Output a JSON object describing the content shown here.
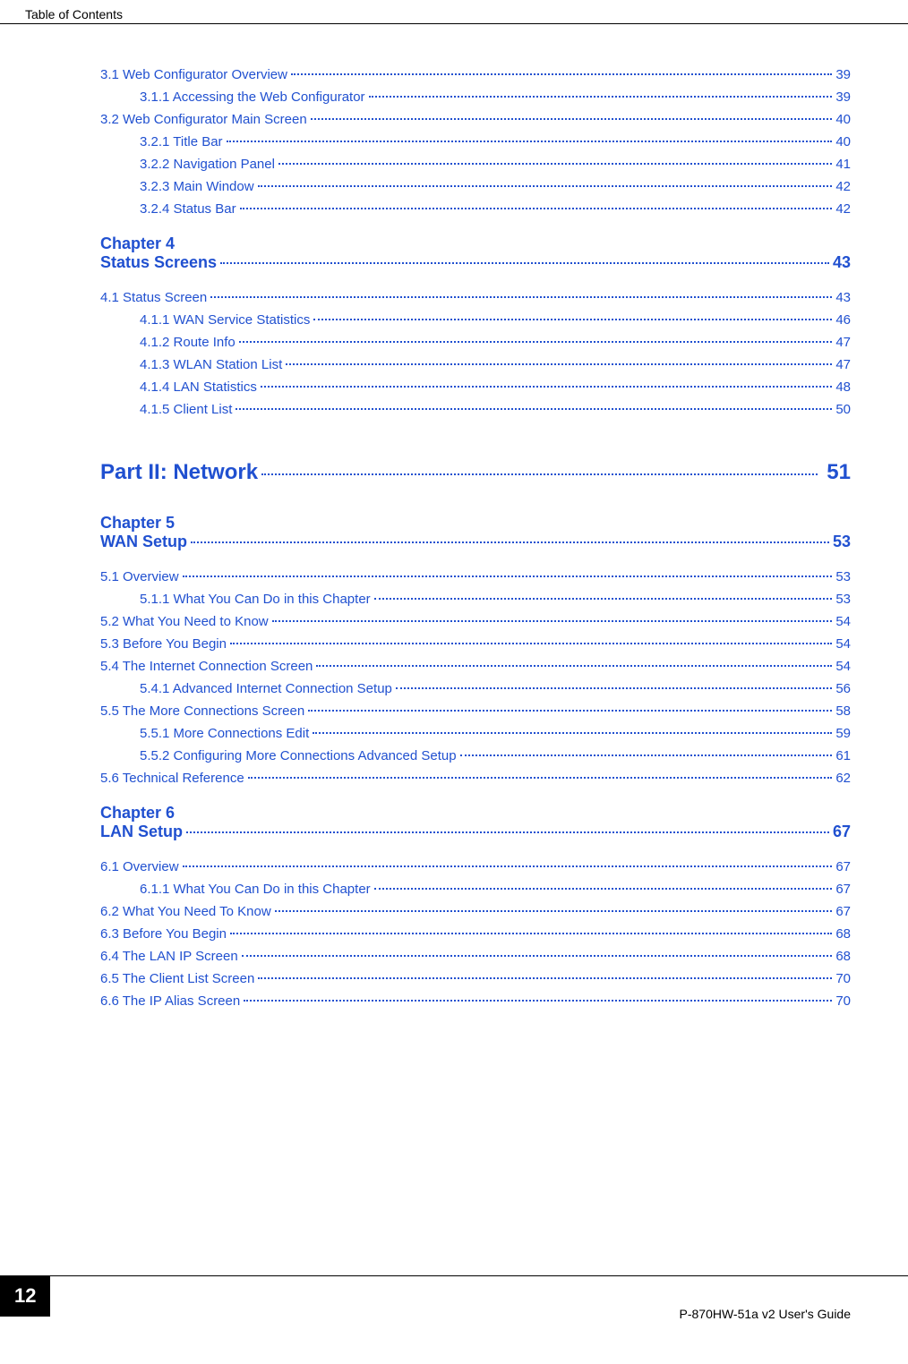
{
  "header": {
    "title": "Table of Contents"
  },
  "colors": {
    "link": "#2050d0",
    "text": "#000000",
    "background": "#ffffff"
  },
  "toc": {
    "first_block": [
      {
        "level": "section",
        "label": "3.1 Web Configurator Overview",
        "page": "39"
      },
      {
        "level": "subsection",
        "label": "3.1.1 Accessing the Web Configurator",
        "page": "39"
      },
      {
        "level": "section",
        "label": "3.2 Web Configurator Main Screen",
        "page": "40"
      },
      {
        "level": "subsection",
        "label": "3.2.1 Title Bar",
        "page": "40"
      },
      {
        "level": "subsection",
        "label": "3.2.2 Navigation Panel",
        "page": "41"
      },
      {
        "level": "subsection",
        "label": "3.2.3 Main Window",
        "page": "42"
      },
      {
        "level": "subsection",
        "label": "3.2.4 Status Bar",
        "page": "42"
      }
    ],
    "chapter4": {
      "heading": "Chapter  4",
      "title": "Status Screens",
      "page": "43",
      "entries": [
        {
          "level": "section",
          "label": "4.1 Status Screen",
          "page": "43"
        },
        {
          "level": "subsection",
          "label": "4.1.1 WAN Service Statistics",
          "page": "46"
        },
        {
          "level": "subsection",
          "label": "4.1.2 Route Info",
          "page": "47"
        },
        {
          "level": "subsection",
          "label": "4.1.3 WLAN Station List",
          "page": "47"
        },
        {
          "level": "subsection",
          "label": "4.1.4 LAN Statistics",
          "page": "48"
        },
        {
          "level": "subsection",
          "label": "4.1.5 Client List",
          "page": "50"
        }
      ]
    },
    "part2": {
      "title": "Part II: Network",
      "page": "51"
    },
    "chapter5": {
      "heading": "Chapter  5",
      "title": "WAN Setup",
      "page": "53",
      "entries": [
        {
          "level": "section",
          "label": "5.1 Overview",
          "page": "53"
        },
        {
          "level": "subsection",
          "label": "5.1.1 What You Can Do in this Chapter",
          "page": "53"
        },
        {
          "level": "section",
          "label": "5.2 What You Need to Know",
          "page": "54"
        },
        {
          "level": "section",
          "label": "5.3 Before You Begin",
          "page": "54"
        },
        {
          "level": "section",
          "label": "5.4 The Internet Connection Screen",
          "page": "54"
        },
        {
          "level": "subsection",
          "label": "5.4.1 Advanced Internet Connection Setup",
          "page": "56"
        },
        {
          "level": "section",
          "label": "5.5 The More Connections Screen",
          "page": "58"
        },
        {
          "level": "subsection",
          "label": "5.5.1 More Connections Edit",
          "page": "59"
        },
        {
          "level": "subsection",
          "label": "5.5.2 Configuring More Connections Advanced Setup",
          "page": "61"
        },
        {
          "level": "section",
          "label": "5.6 Technical Reference",
          "page": "62"
        }
      ]
    },
    "chapter6": {
      "heading": "Chapter  6",
      "title": "LAN Setup",
      "page": "67",
      "entries": [
        {
          "level": "section",
          "label": "6.1 Overview",
          "page": "67"
        },
        {
          "level": "subsection",
          "label": "6.1.1 What You Can Do in this Chapter",
          "page": "67"
        },
        {
          "level": "section",
          "label": "6.2 What You Need To Know",
          "page": "67"
        },
        {
          "level": "section",
          "label": "6.3 Before You Begin",
          "page": "68"
        },
        {
          "level": "section",
          "label": "6.4 The LAN IP Screen",
          "page": "68"
        },
        {
          "level": "section",
          "label": "6.5 The Client List Screen",
          "page": "70"
        },
        {
          "level": "section",
          "label": "6.6 The IP Alias Screen",
          "page": "70"
        }
      ]
    }
  },
  "footer": {
    "page_number": "12",
    "guide_title": "P-870HW-51a v2 User's Guide"
  }
}
